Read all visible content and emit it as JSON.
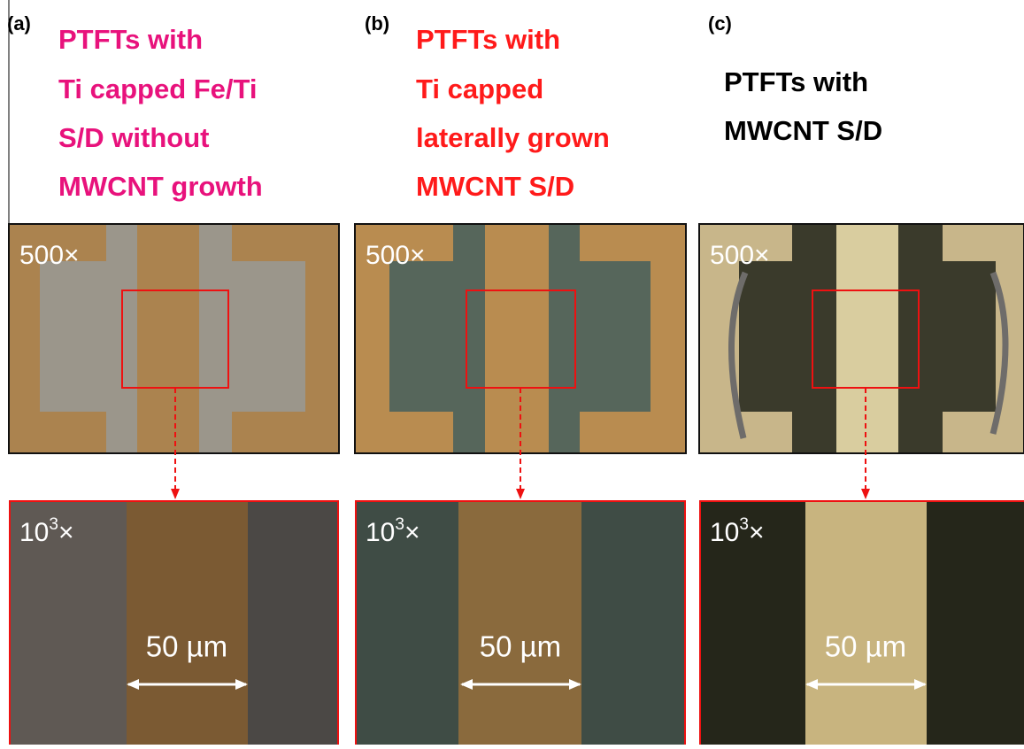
{
  "panels": [
    {
      "label": "(a)",
      "caption": [
        "PTFTs with",
        "Ti capped Fe/Ti",
        "S/D without",
        "MWCNT growth"
      ],
      "low_mag": "500×",
      "high_mag": {
        "base": "10",
        "exponent": "3",
        "unit": "×"
      },
      "scale_bar": "50 µm"
    },
    {
      "label": "(b)",
      "caption": [
        "PTFTs with",
        "Ti capped",
        "laterally grown",
        "MWCNT S/D"
      ],
      "low_mag": "500×",
      "high_mag": {
        "base": "10",
        "exponent": "3",
        "unit": "×"
      },
      "scale_bar": "50 µm"
    },
    {
      "label": "(c)",
      "caption": [
        "PTFTs with",
        "MWCNT S/D"
      ],
      "low_mag": "500×",
      "high_mag": {
        "base": "10",
        "exponent": "3",
        "unit": "×"
      },
      "scale_bar": "50 µm"
    }
  ]
}
